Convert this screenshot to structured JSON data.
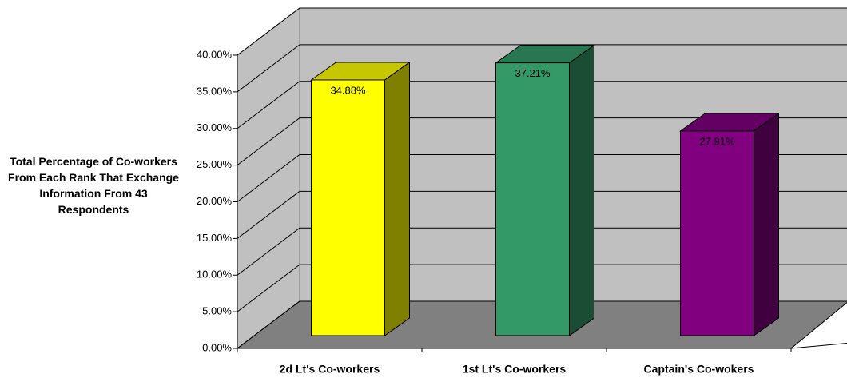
{
  "chart_data": {
    "type": "bar3d",
    "y_label": "Total Percentage of Co-workers From Each Rank That Exchange Information From 43 Respondents",
    "categories": [
      "2d Lt's Co-workers",
      "1st Lt's Co-workers",
      "Captain's Co-wokers"
    ],
    "values": [
      34.88,
      37.21,
      27.91
    ],
    "value_labels": [
      "34.88%",
      "37.21%",
      "27.91%"
    ],
    "colors": [
      "#ffff00",
      "#339966",
      "#800080"
    ],
    "ylim": [
      0,
      40
    ],
    "yticks": [
      {
        "value": 0,
        "label": "0.00%"
      },
      {
        "value": 5,
        "label": "5.00%"
      },
      {
        "value": 10,
        "label": "10.00%"
      },
      {
        "value": 15,
        "label": "15.00%"
      },
      {
        "value": 20,
        "label": "20.00%"
      },
      {
        "value": 25,
        "label": "25.00%"
      },
      {
        "value": 30,
        "label": "30.00%"
      },
      {
        "value": 35,
        "label": "35.00%"
      },
      {
        "value": 40,
        "label": "40.00%"
      }
    ],
    "grid": true
  }
}
